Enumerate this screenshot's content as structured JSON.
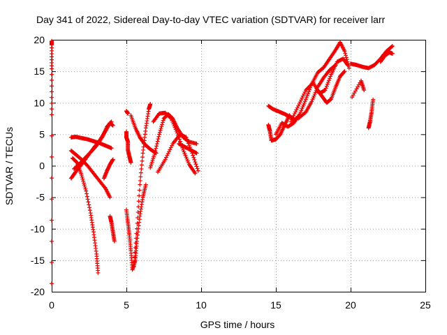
{
  "chart_data": {
    "type": "scatter",
    "title": "Day 341 of 2022, Sidereal Day-to-day VTEC variation (SDTVAR) for receiver larr",
    "xlabel": "GPS time / hours",
    "ylabel": "SDTVAR / TECUs",
    "xlim": [
      0,
      25
    ],
    "ylim": [
      -20,
      20
    ],
    "xticks": [
      "0",
      "5",
      "10",
      "15",
      "20",
      "25"
    ],
    "yticks": [
      "20",
      "15",
      "10",
      "5",
      "0",
      "-5",
      "-10",
      "-15",
      "-20"
    ],
    "grid": true,
    "marker": "+",
    "color": "#ee0000",
    "series": [
      {
        "points": [
          [
            0.0,
            19.8
          ],
          [
            0.0,
            19.2
          ],
          [
            0.0,
            15.4
          ],
          [
            0.0,
            8.1
          ],
          [
            0.0,
            -18.7
          ]
        ]
      },
      {
        "points": [
          [
            1.3,
            4.5
          ],
          [
            1.6,
            4.6
          ],
          [
            2.0,
            4.4
          ],
          [
            2.4,
            4.2
          ],
          [
            2.8,
            3.9
          ],
          [
            3.2,
            3.6
          ],
          [
            3.6,
            3.2
          ],
          [
            4.0,
            2.8
          ]
        ]
      },
      {
        "points": [
          [
            1.3,
            2.4
          ],
          [
            1.6,
            1.8
          ],
          [
            2.0,
            1.0
          ],
          [
            2.4,
            0.0
          ],
          [
            2.8,
            -1.2
          ],
          [
            3.2,
            -2.4
          ],
          [
            3.6,
            -3.6
          ],
          [
            3.9,
            -5.0
          ]
        ]
      },
      {
        "points": [
          [
            1.3,
            -2.0
          ],
          [
            1.6,
            -1.0
          ],
          [
            2.0,
            0.2
          ],
          [
            2.4,
            1.5
          ],
          [
            2.8,
            2.8
          ],
          [
            3.2,
            4.0
          ],
          [
            3.6,
            5.5
          ],
          [
            3.9,
            6.8
          ],
          [
            4.1,
            6.4
          ]
        ]
      },
      {
        "points": [
          [
            1.4,
            1.2
          ],
          [
            1.7,
            0.5
          ],
          [
            2.0,
            -1.5
          ],
          [
            2.3,
            -4.0
          ],
          [
            2.6,
            -7.5
          ],
          [
            2.8,
            -10.5
          ],
          [
            3.0,
            -14.0
          ],
          [
            3.1,
            -17.0
          ]
        ]
      },
      {
        "points": [
          [
            1.5,
            -0.5
          ],
          [
            1.9,
            0.4
          ],
          [
            2.3,
            1.4
          ],
          [
            2.7,
            2.4
          ],
          [
            3.0,
            3.2
          ],
          [
            3.4,
            4.6
          ],
          [
            3.7,
            6.2
          ],
          [
            4.0,
            7.0
          ]
        ]
      },
      {
        "points": [
          [
            3.5,
            -2.0
          ],
          [
            3.7,
            -0.8
          ],
          [
            3.9,
            0.2
          ],
          [
            4.1,
            1.0
          ]
        ]
      },
      {
        "points": [
          [
            3.9,
            -8.0
          ],
          [
            4.0,
            -9.0
          ],
          [
            4.1,
            -10.5
          ],
          [
            4.2,
            -12.0
          ]
        ]
      },
      {
        "points": [
          [
            5.0,
            8.7
          ],
          [
            5.1,
            8.3
          ]
        ]
      },
      {
        "points": [
          [
            5.0,
            5.4
          ],
          [
            5.0,
            4.5
          ],
          [
            5.1,
            3.8
          ],
          [
            5.1,
            2.5
          ],
          [
            5.2,
            1.5
          ],
          [
            5.3,
            0.5
          ]
        ]
      },
      {
        "points": [
          [
            5.0,
            -7.0
          ],
          [
            5.1,
            -9.0
          ],
          [
            5.2,
            -11.0
          ],
          [
            5.3,
            -13.5
          ],
          [
            5.4,
            -16.5
          ],
          [
            5.6,
            -15.0
          ],
          [
            5.7,
            -12.0
          ],
          [
            5.9,
            -8.0
          ],
          [
            6.1,
            -5.0
          ],
          [
            6.3,
            -3.0
          ]
        ]
      },
      {
        "points": [
          [
            5.5,
            -16.0
          ],
          [
            5.7,
            -10.0
          ],
          [
            5.9,
            -3.0
          ],
          [
            6.1,
            2.0
          ],
          [
            6.3,
            6.0
          ],
          [
            6.5,
            9.0
          ],
          [
            6.6,
            9.8
          ]
        ]
      },
      {
        "points": [
          [
            5.3,
            8.0
          ],
          [
            5.6,
            6.0
          ],
          [
            5.9,
            4.5
          ],
          [
            6.2,
            3.5
          ],
          [
            6.6,
            2.6
          ],
          [
            7.0,
            2.0
          ]
        ]
      },
      {
        "points": [
          [
            6.6,
            -0.3
          ],
          [
            6.9,
            2.0
          ],
          [
            7.2,
            5.0
          ],
          [
            7.5,
            7.5
          ],
          [
            7.8,
            8.2
          ],
          [
            8.1,
            7.5
          ],
          [
            8.4,
            6.0
          ],
          [
            8.8,
            4.5
          ],
          [
            9.2,
            3.8
          ],
          [
            9.7,
            3.5
          ]
        ]
      },
      {
        "points": [
          [
            6.8,
            7.0
          ],
          [
            7.2,
            8.3
          ],
          [
            7.6,
            8.4
          ],
          [
            8.0,
            7.5
          ],
          [
            8.4,
            5.2
          ],
          [
            8.8,
            2.5
          ],
          [
            9.2,
            0.2
          ],
          [
            9.6,
            -1.2
          ]
        ]
      },
      {
        "points": [
          [
            7.1,
            -1.0
          ],
          [
            7.6,
            1.0
          ],
          [
            8.1,
            3.5
          ],
          [
            8.6,
            5.0
          ],
          [
            9.0,
            4.5
          ],
          [
            9.4,
            2.0
          ],
          [
            9.8,
            -0.8
          ]
        ]
      },
      {
        "points": [
          [
            8.5,
            3.5
          ],
          [
            8.9,
            3.0
          ],
          [
            9.3,
            2.5
          ],
          [
            9.7,
            2.0
          ]
        ]
      },
      {
        "points": [
          [
            14.5,
            9.5
          ],
          [
            14.8,
            9.0
          ],
          [
            15.2,
            8.6
          ],
          [
            15.6,
            8.2
          ],
          [
            15.9,
            7.8
          ]
        ]
      },
      {
        "points": [
          [
            14.5,
            6.5
          ],
          [
            14.6,
            5.5
          ],
          [
            14.7,
            4.0
          ],
          [
            15.0,
            4.2
          ],
          [
            15.3,
            5.0
          ],
          [
            15.6,
            6.5
          ],
          [
            15.9,
            8.0
          ],
          [
            16.2,
            7.2
          ],
          [
            16.5,
            7.8
          ]
        ]
      },
      {
        "points": [
          [
            15.0,
            5.0
          ],
          [
            15.4,
            6.8
          ],
          [
            15.8,
            6.2
          ],
          [
            16.2,
            6.8
          ],
          [
            16.6,
            8.2
          ],
          [
            17.0,
            10.5
          ],
          [
            17.4,
            13.0
          ],
          [
            17.8,
            14.8
          ],
          [
            18.2,
            15.6
          ],
          [
            18.6,
            17.0
          ],
          [
            19.0,
            18.4
          ],
          [
            19.3,
            19.6
          ],
          [
            19.6,
            18.2
          ],
          [
            19.9,
            15.5
          ]
        ]
      },
      {
        "points": [
          [
            16.0,
            7.0
          ],
          [
            16.5,
            9.5
          ],
          [
            17.0,
            12.0
          ],
          [
            17.5,
            13.2
          ],
          [
            17.9,
            11.5
          ],
          [
            18.3,
            12.0
          ],
          [
            18.7,
            14.5
          ],
          [
            19.1,
            16.5
          ],
          [
            19.5,
            17.0
          ],
          [
            19.8,
            16.0
          ]
        ]
      },
      {
        "points": [
          [
            16.5,
            7.5
          ],
          [
            17.0,
            8.5
          ],
          [
            17.4,
            10.2
          ],
          [
            17.8,
            12.5
          ],
          [
            18.2,
            14.0
          ],
          [
            18.6,
            15.2
          ],
          [
            19.0,
            16.0
          ]
        ]
      },
      {
        "points": [
          [
            17.8,
            12.0
          ],
          [
            18.1,
            11.0
          ],
          [
            18.4,
            10.0
          ],
          [
            18.7,
            10.6
          ],
          [
            19.0,
            12.5
          ],
          [
            19.3,
            14.2
          ],
          [
            19.6,
            15.0
          ]
        ]
      },
      {
        "points": [
          [
            20.0,
            16.2
          ],
          [
            20.4,
            16.0
          ],
          [
            20.8,
            15.7
          ],
          [
            21.2,
            15.5
          ],
          [
            21.6,
            16.0
          ],
          [
            22.0,
            17.0
          ],
          [
            22.4,
            18.2
          ],
          [
            22.8,
            19.0
          ]
        ]
      },
      {
        "points": [
          [
            20.1,
            10.9
          ],
          [
            20.7,
            13.5
          ],
          [
            20.9,
            12.0
          ]
        ]
      },
      {
        "points": [
          [
            21.2,
            6.0
          ],
          [
            21.3,
            7.0
          ],
          [
            21.4,
            8.5
          ],
          [
            21.5,
            10.5
          ]
        ]
      },
      {
        "points": [
          [
            22.0,
            16.5
          ],
          [
            22.3,
            17.5
          ],
          [
            22.6,
            18.0
          ],
          [
            22.8,
            17.8
          ]
        ]
      }
    ]
  }
}
